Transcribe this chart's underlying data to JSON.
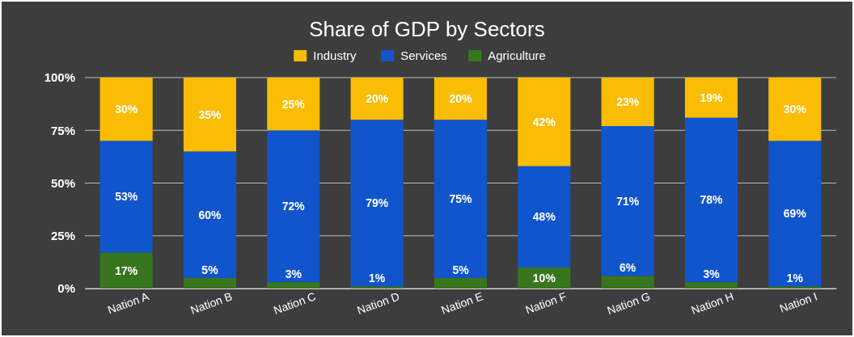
{
  "chart_data": {
    "type": "bar",
    "title": "Share of GDP by Sectors",
    "stacked": true,
    "categories": [
      "Nation A",
      "Nation B",
      "Nation C",
      "Nation D",
      "Nation E",
      "Nation F",
      "Nation G",
      "Nation H",
      "Nation I"
    ],
    "series": [
      {
        "name": "Agriculture",
        "color": "#38761d",
        "values": [
          17,
          5,
          3,
          1,
          5,
          10,
          6,
          3,
          1
        ],
        "value_labels": [
          "17%",
          "5%",
          "3%",
          "1%",
          "5%",
          "10%",
          "6%",
          "3%",
          "1%"
        ]
      },
      {
        "name": "Services",
        "color": "#1155cc",
        "values": [
          53,
          60,
          72,
          79,
          75,
          48,
          71,
          78,
          69
        ],
        "value_labels": [
          "53%",
          "60%",
          "72%",
          "79%",
          "75%",
          "48%",
          "71%",
          "78%",
          "69%"
        ]
      },
      {
        "name": "Industry",
        "color": "#fbbc04",
        "values": [
          30,
          35,
          25,
          20,
          20,
          42,
          23,
          19,
          30
        ],
        "value_labels": [
          "30%",
          "35%",
          "25%",
          "20%",
          "20%",
          "42%",
          "23%",
          "19%",
          "30%"
        ]
      }
    ],
    "ylim": [
      0,
      100
    ],
    "yticks": [
      {
        "value": 0,
        "label": "0%"
      },
      {
        "value": 25,
        "label": "25%"
      },
      {
        "value": 50,
        "label": "50%"
      },
      {
        "value": 75,
        "label": "75%"
      },
      {
        "value": 100,
        "label": "100%"
      }
    ],
    "grid": "y",
    "legend": "top"
  }
}
